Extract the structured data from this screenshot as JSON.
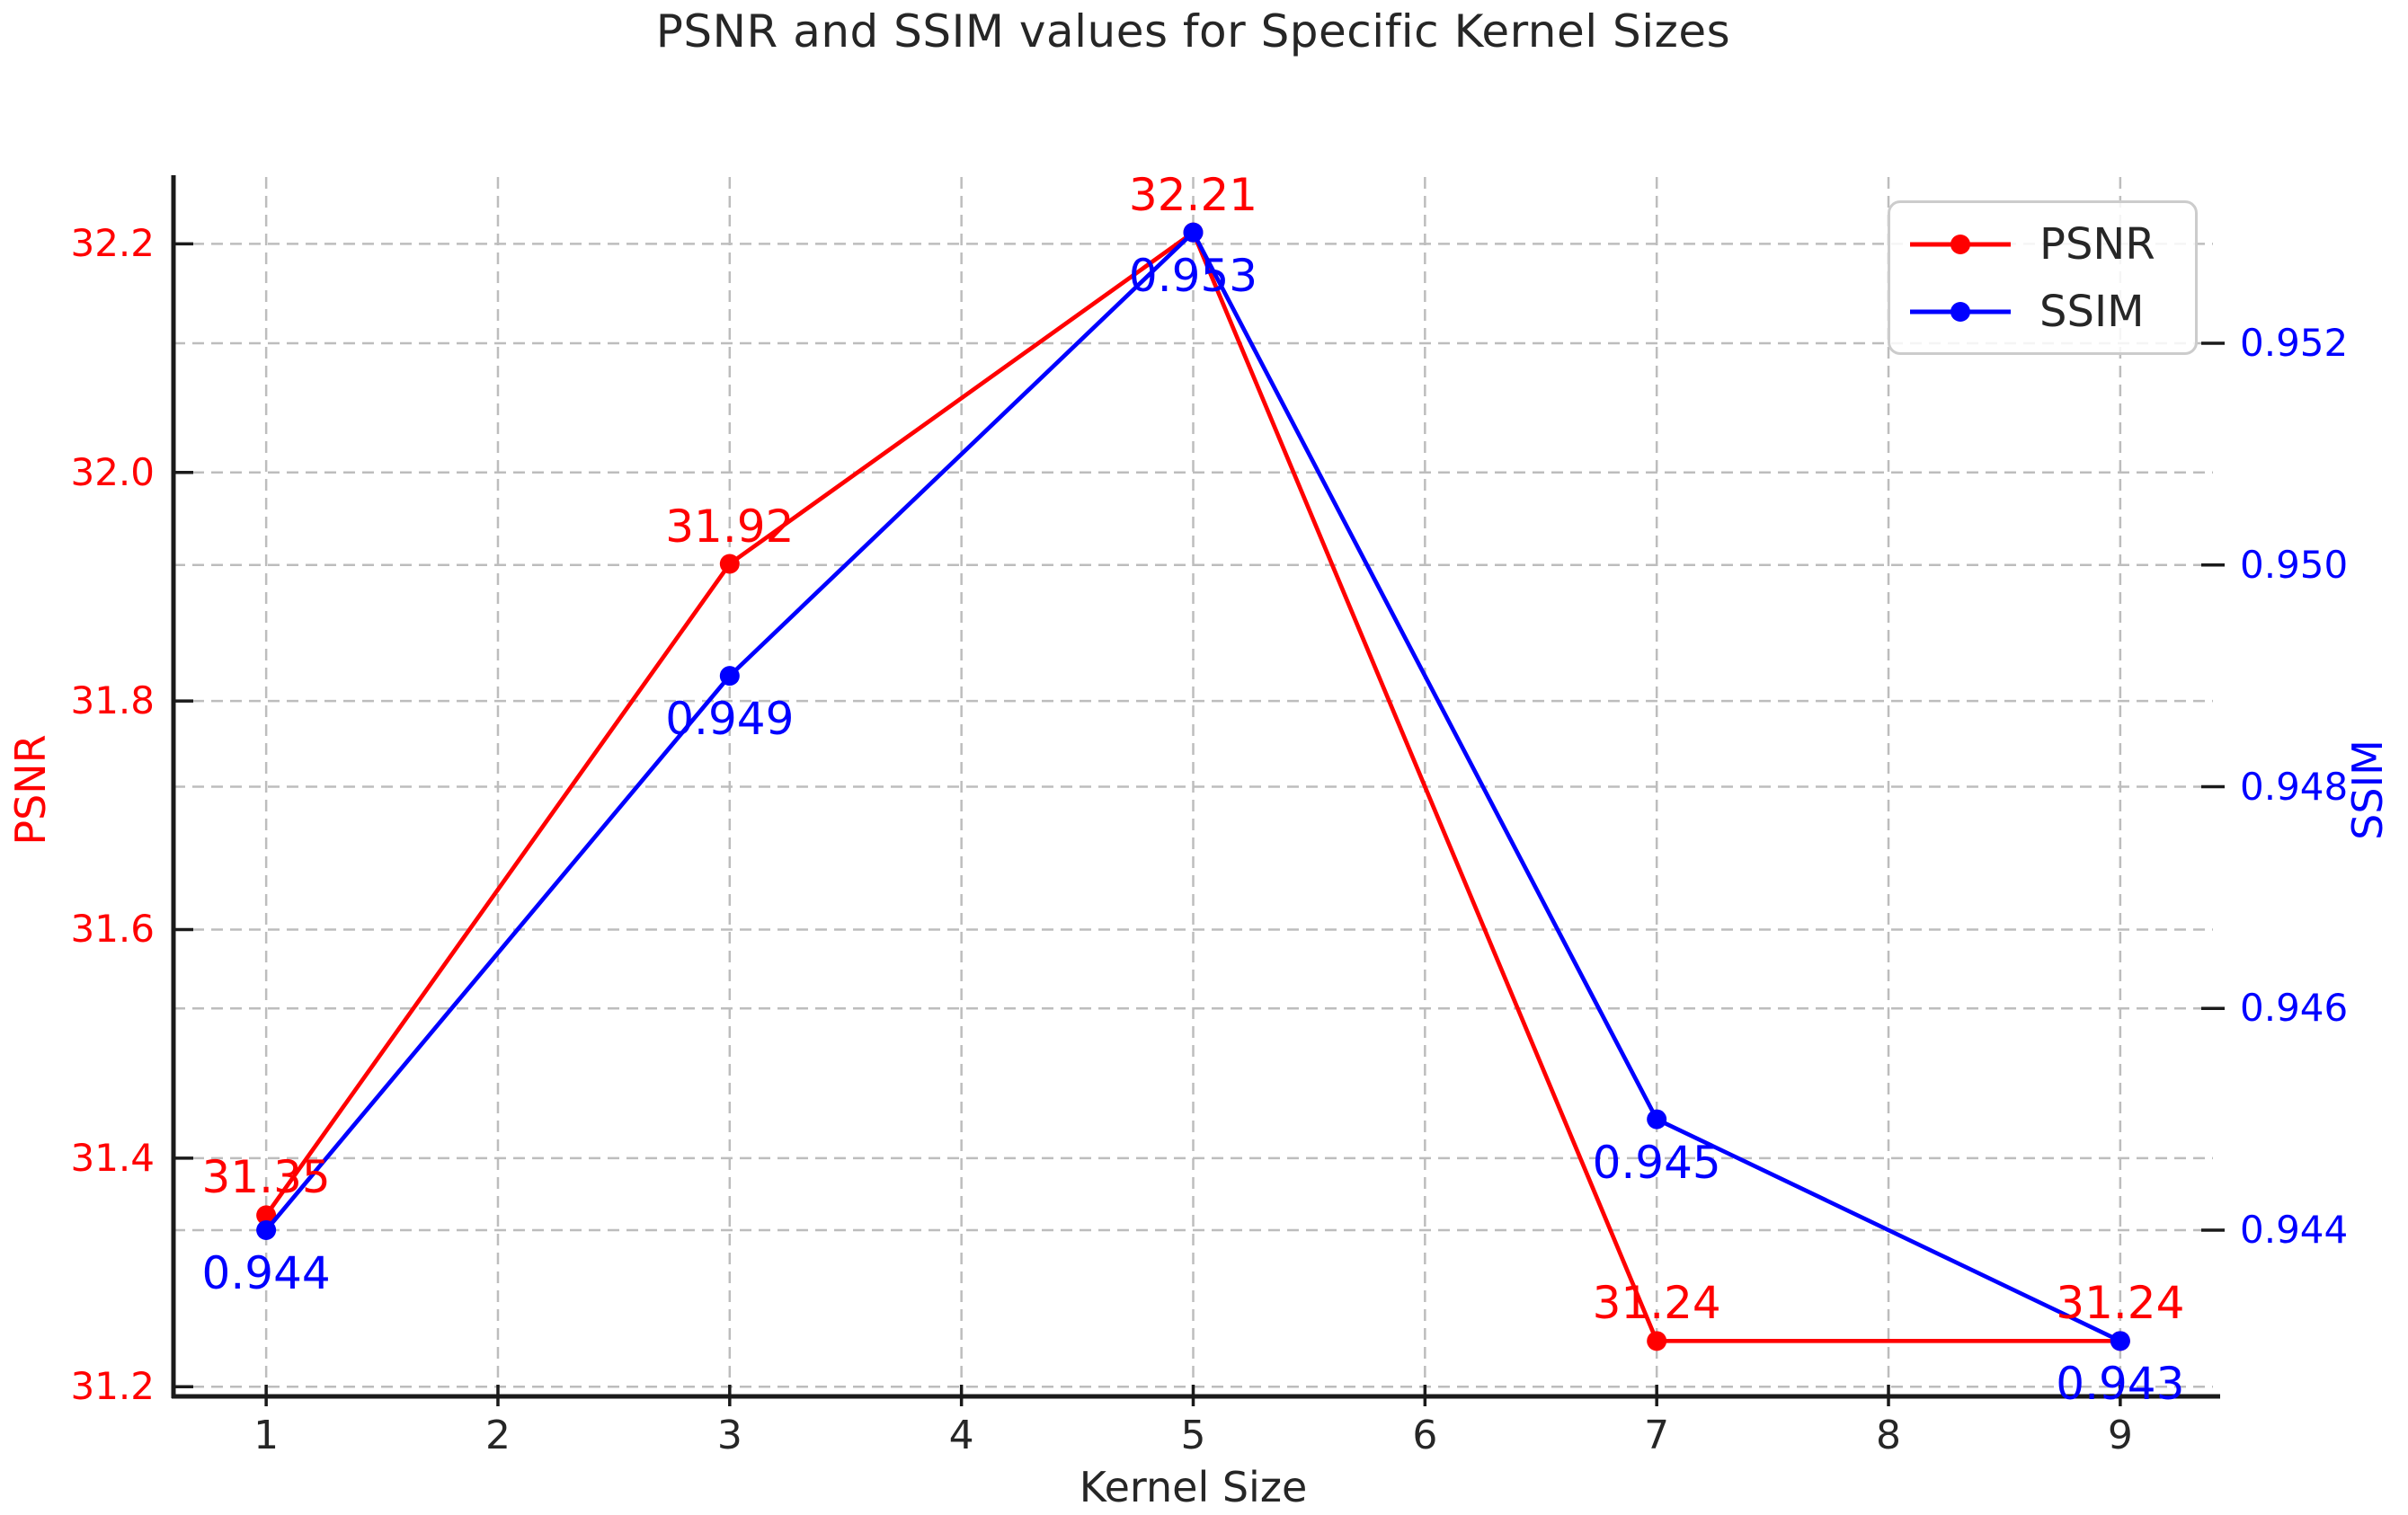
{
  "title": "PSNR and SSIM values for Specific Kernel Sizes",
  "chart_data": {
    "type": "line",
    "x": [
      1,
      3,
      5,
      7,
      9
    ],
    "x_ticks": [
      1,
      2,
      3,
      4,
      5,
      6,
      7,
      8,
      9
    ],
    "x_tick_labels": [
      "1",
      "2",
      "3",
      "4",
      "5",
      "6",
      "7",
      "8",
      "9"
    ],
    "xlabel": "Kernel Size",
    "xlim": [
      0.6,
      9.4
    ],
    "grid": true,
    "grid_style": "dashed",
    "grid_color": "#bdbdbd",
    "background": "#ffffff",
    "series": [
      {
        "name": "PSNR",
        "axis": "left",
        "color": "#ff0000",
        "marker": "circle",
        "values": [
          31.35,
          31.92,
          32.21,
          31.24,
          31.24
        ],
        "point_labels": [
          "31.35",
          "31.92",
          "32.21",
          "31.24",
          "31.24"
        ],
        "label_side": "above"
      },
      {
        "name": "SSIM",
        "axis": "right",
        "color": "#0000ff",
        "marker": "circle",
        "values": [
          0.944,
          0.949,
          0.953,
          0.945,
          0.943
        ],
        "point_labels": [
          "0.944",
          "0.949",
          "0.953",
          "0.945",
          "0.943"
        ],
        "label_side": "below"
      }
    ],
    "left_axis": {
      "label": "PSNR",
      "color": "#ff0000",
      "tick_values": [
        31.2,
        31.4,
        31.6,
        31.8,
        32.0,
        32.2
      ],
      "tick_labels": [
        "31.2",
        "31.4",
        "31.6",
        "31.8",
        "32.0",
        "32.2"
      ],
      "range": [
        31.1915,
        32.2585
      ]
    },
    "right_axis": {
      "label": "SSIM",
      "color": "#0000ff",
      "tick_values": [
        0.944,
        0.946,
        0.948,
        0.95,
        0.952
      ],
      "tick_labels": [
        "0.944",
        "0.946",
        "0.948",
        "0.950",
        "0.952"
      ],
      "range": [
        0.9425,
        0.9535
      ]
    },
    "legend": {
      "position": "upper right",
      "entries": [
        "PSNR",
        "SSIM"
      ]
    }
  }
}
